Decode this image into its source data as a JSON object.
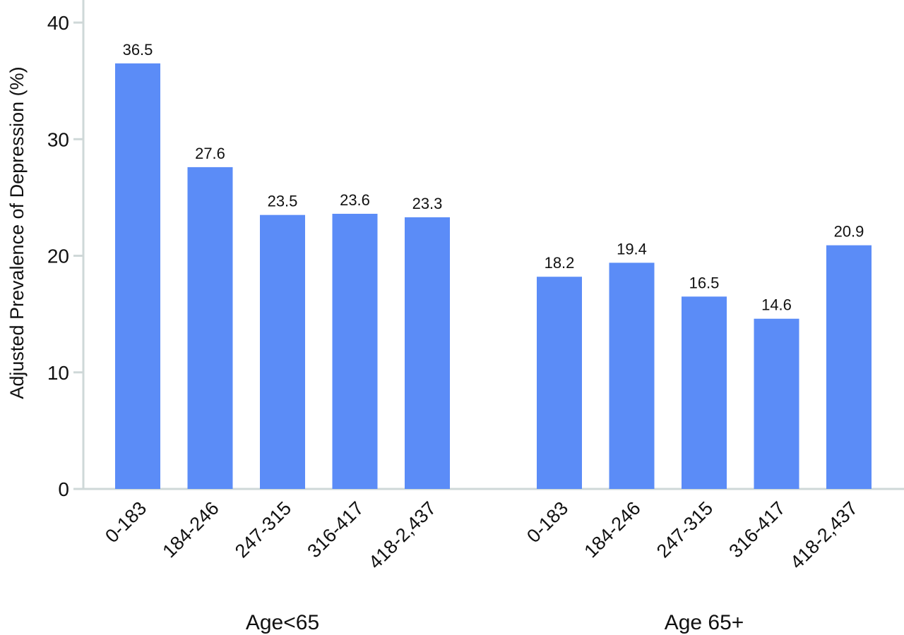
{
  "chart_data": {
    "type": "bar",
    "title": "",
    "xlabel": "",
    "ylabel": "Adjusted Prevalence of Depression (%)",
    "ylim": [
      0,
      40
    ],
    "yticks": [
      "0",
      "10",
      "20",
      "30",
      "40"
    ],
    "grid": false,
    "bar_color": "#5b8cf7",
    "axis_color": "#cfd8d8",
    "groups": [
      {
        "name": "Age<65",
        "categories": [
          "0-183",
          "184-246",
          "247-315",
          "316-417",
          "418-2,437"
        ],
        "values": [
          36.5,
          27.6,
          23.5,
          23.6,
          23.3
        ],
        "value_labels": [
          "36.5",
          "27.6",
          "23.5",
          "23.6",
          "23.3"
        ]
      },
      {
        "name": "Age 65+",
        "categories": [
          "0-183",
          "184-246",
          "247-315",
          "316-417",
          "418-2,437"
        ],
        "values": [
          18.2,
          19.4,
          16.5,
          14.6,
          20.9
        ],
        "value_labels": [
          "18.2",
          "19.4",
          "16.5",
          "14.6",
          "20.9"
        ]
      }
    ]
  }
}
